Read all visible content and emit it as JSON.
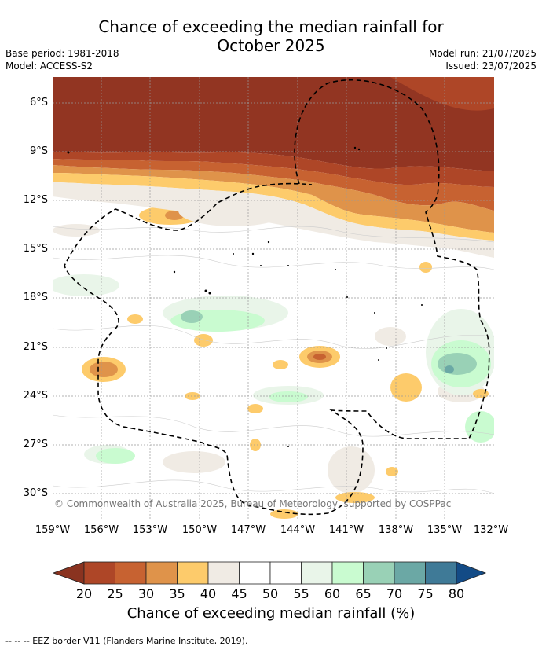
{
  "title_line1": "Chance of exceeding the median rainfall for",
  "title_line2": "October 2025",
  "base_period": "Base period: 1981-2018",
  "model": "Model: ACCESS-S2",
  "model_run": "Model run: 21/07/2025",
  "issued": "Issued: 23/07/2025",
  "copyright": "© Commonwealth of Australia 2025, Bureau of Meteorology, supported by COSPPac",
  "footnote": "--  --  -- EEZ border V11 (Flanders Marine Institute, 2019).",
  "colorbar": {
    "label": "Chance of exceeding median rainfall (%)",
    "ticks": [
      "20",
      "25",
      "30",
      "35",
      "40",
      "45",
      "50",
      "55",
      "60",
      "65",
      "70",
      "75",
      "80"
    ],
    "colors": [
      "#ae4627",
      "#c76231",
      "#df934a",
      "#fdcb6b",
      "#f0ebe4",
      "#ffffff",
      "#ffffff",
      "#e9f5e9",
      "#c9fbd0",
      "#99d1b6",
      "#6ba8a5",
      "#3f7a97"
    ],
    "under_color": "#8a3320",
    "over_color": "#134b86"
  },
  "map": {
    "lat_labels": [
      "6°S",
      "9°S",
      "12°S",
      "15°S",
      "18°S",
      "21°S",
      "24°S",
      "27°S",
      "30°S"
    ],
    "lon_labels": [
      "159°W",
      "156°W",
      "153°W",
      "150°W",
      "147°W",
      "144°W",
      "141°W",
      "138°W",
      "135°W",
      "132°W"
    ]
  }
}
